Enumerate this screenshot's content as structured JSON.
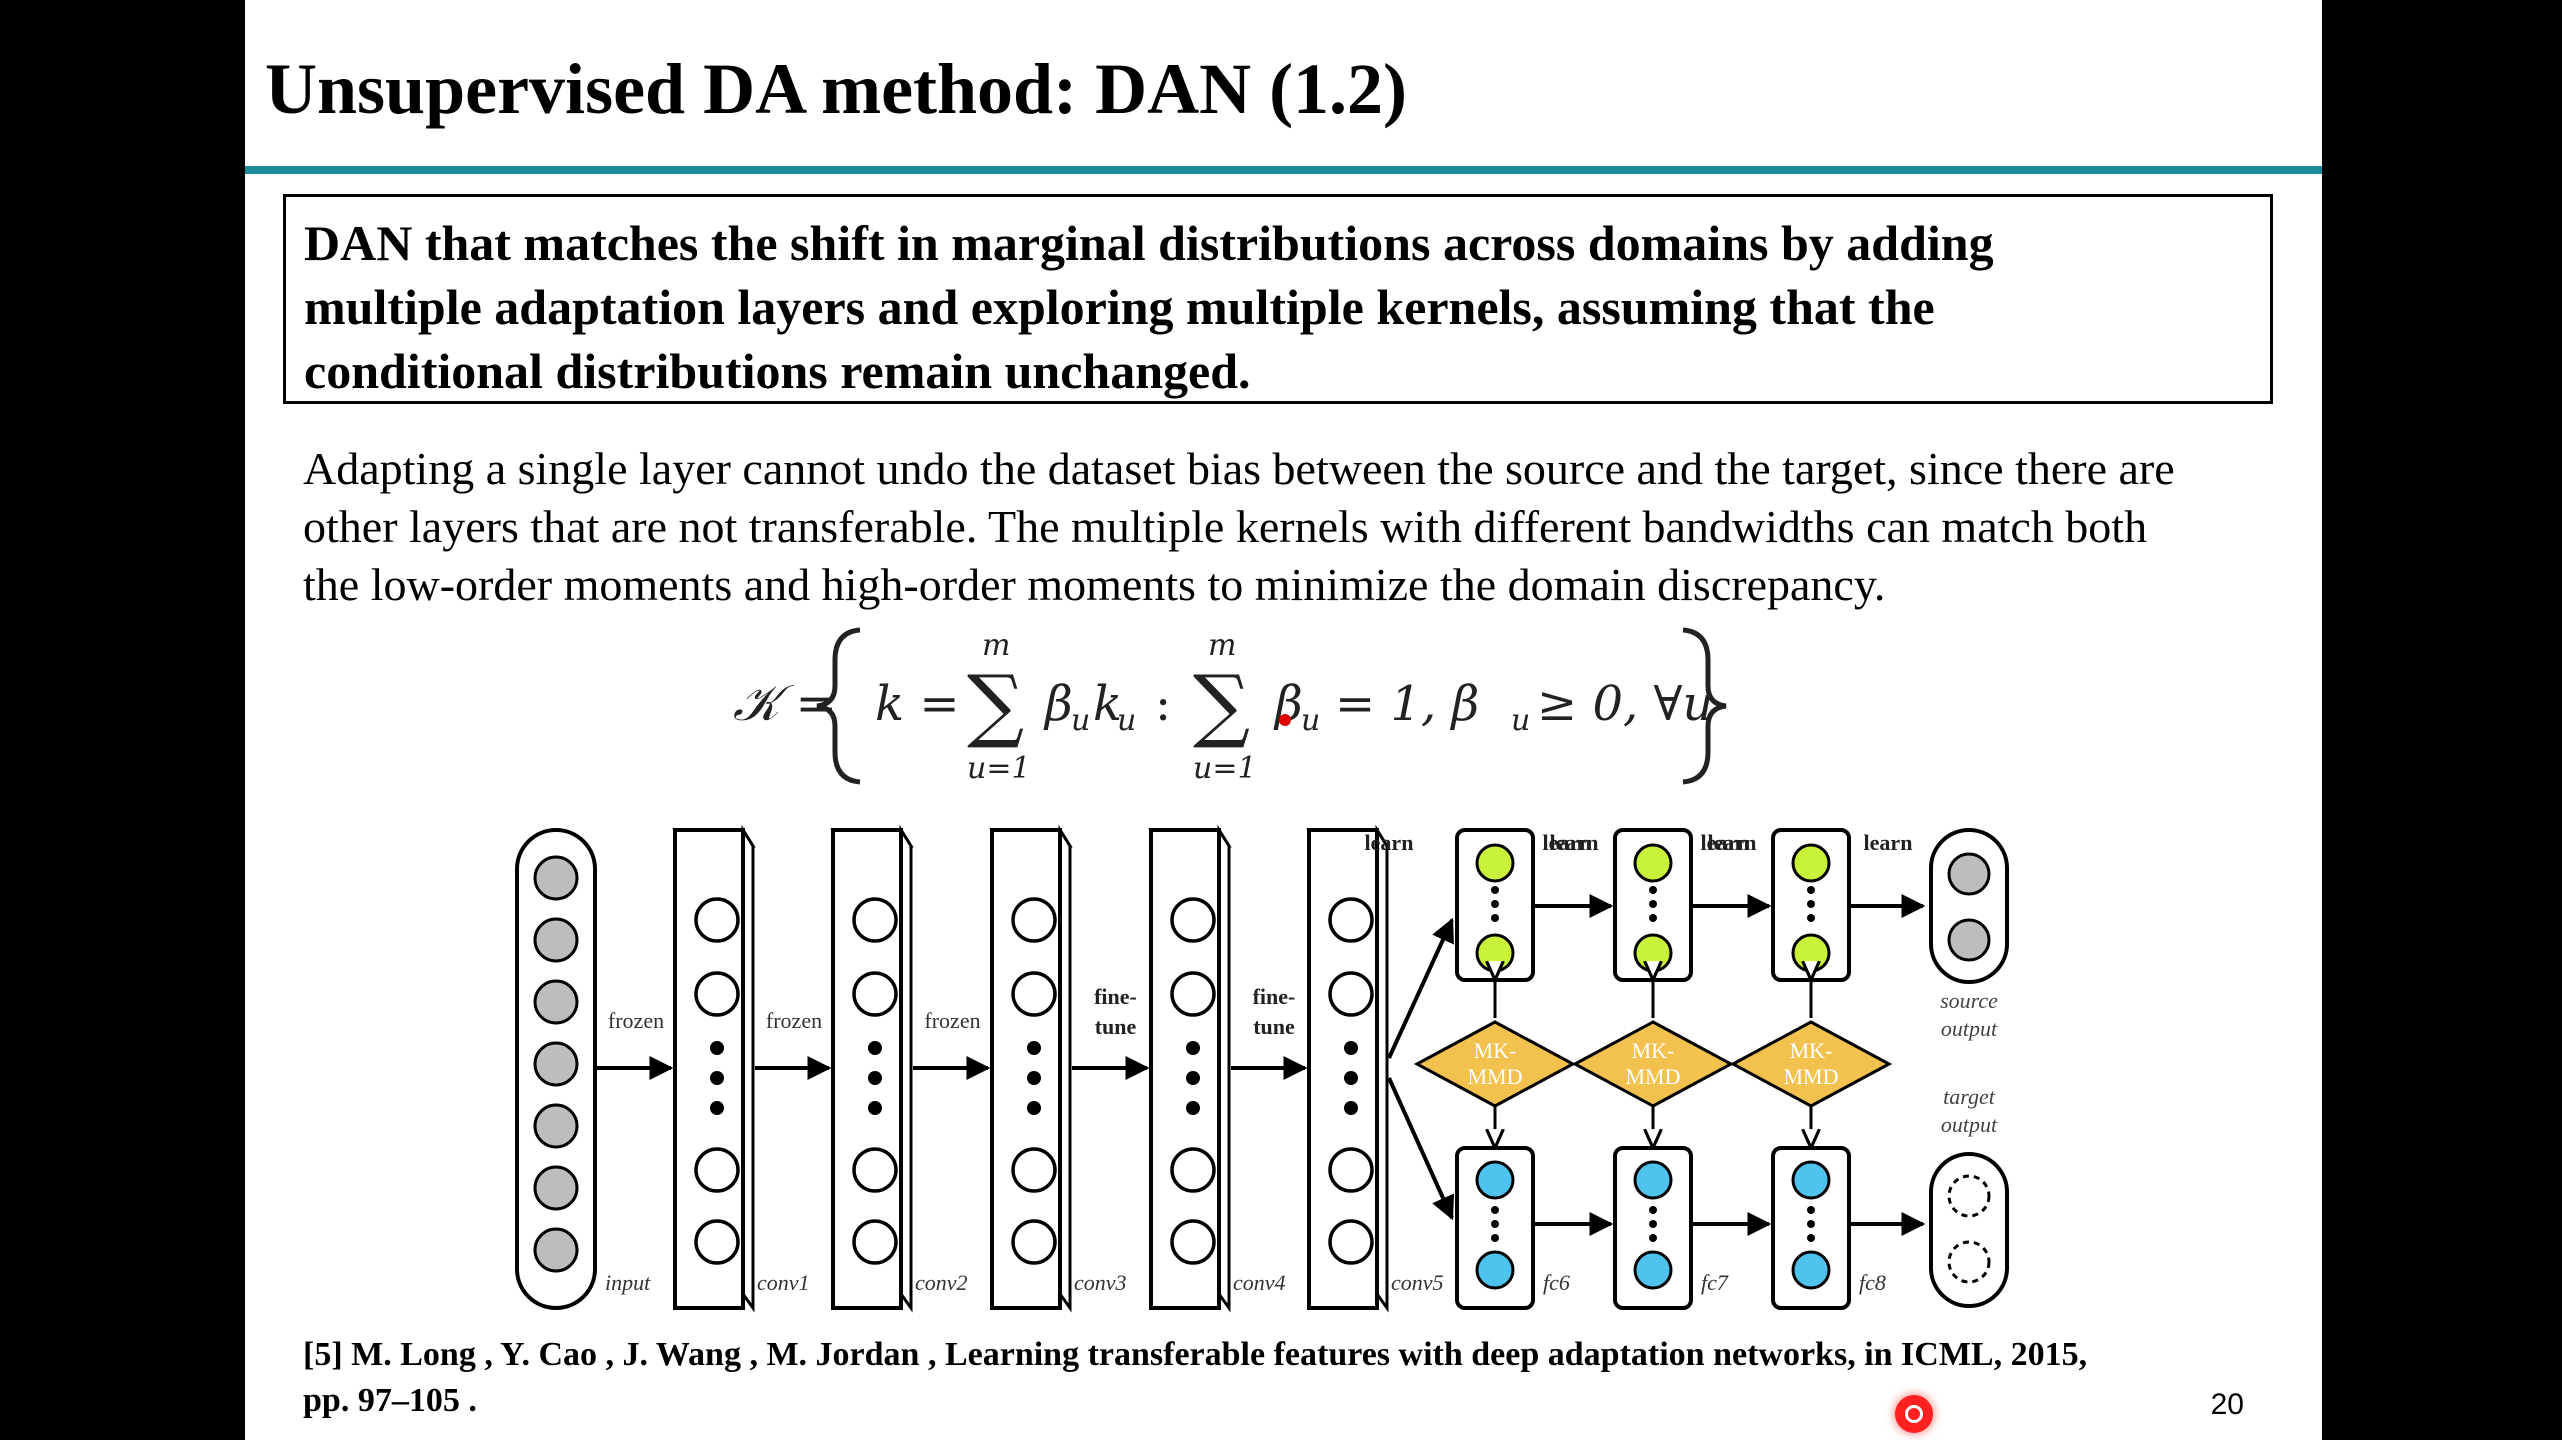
{
  "slide": {
    "title": "Unsupervised DA method: DAN (1.2)",
    "summary_lines": [
      "DAN that matches the shift in marginal distributions across domains by adding",
      "multiple adaptation layers and exploring multiple kernels, assuming that the",
      "conditional distributions remain unchanged."
    ],
    "body_lines": [
      "Adapting a single layer cannot undo the dataset bias between the source and the target, since there are",
      "other layers that are not transferable. The multiple kernels with different bandwidths can match both",
      "the low-order moments and high-order moments to minimize the domain discrepancy."
    ],
    "formula": {
      "lhs": "𝒦 =",
      "k_eq": "k =",
      "sum_upper": "m",
      "sum_lower": "u=1",
      "term1": "β",
      "term1_sub": "u",
      "term1_k": "k",
      "term1_k_sub": "u",
      "colon": ":",
      "term2": "β",
      "term2_sub": "u",
      "tail": "= 1, β",
      "tail_sub": "u",
      "tail_end": "≥ 0, ∀u"
    },
    "diagram": {
      "layer_labels": [
        "input",
        "conv1",
        "conv2",
        "conv3",
        "conv4",
        "conv5",
        "fc6",
        "fc7",
        "fc8"
      ],
      "edge_labels": {
        "frozen": "frozen",
        "fine": "fine-",
        "tune": "tune",
        "learn": "learn"
      },
      "mk_top": "MK-",
      "mk_bottom": "MMD",
      "source_output": [
        "source",
        "output"
      ],
      "target_output": [
        "target",
        "output"
      ],
      "colors": {
        "input_node": "#bdbdbd",
        "fc_node_source": "#c9f23a",
        "fc_node_target": "#4ec3ee",
        "mk_mmd": "#f2c14e",
        "output_node": "#bdbdbd"
      }
    },
    "reference_lines": [
      "[5] M. Long , Y. Cao , J. Wang , M. Jordan , Learning transferable features with deep adaptation networks, in ICML, 2015,",
      "pp. 97–105 ."
    ],
    "page_number": "20"
  }
}
